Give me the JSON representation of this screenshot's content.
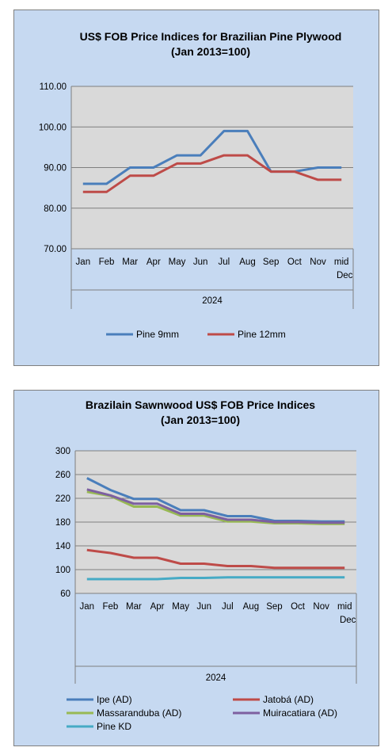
{
  "colors": {
    "panel_bg": "#c6d9f1",
    "plot_bg": "#d9d9d9",
    "gridline": "#7f7f7f",
    "pine_9mm": "#4a7ebb",
    "pine_12mm": "#be4b48",
    "ipe": "#4a7ebb",
    "jatoba": "#be4b48",
    "massaranduba": "#98b954",
    "muiracatiara": "#7d60a0",
    "pine_kd": "#46aac5"
  },
  "chart_data": [
    {
      "type": "line",
      "title": "US$ FOB Price Indices for Brazilian Pine Plywood",
      "subtitle": "(Jan 2013=100)",
      "categories": [
        "Jan",
        "Feb",
        "Mar",
        "Apr",
        "May",
        "Jun",
        "Jul",
        "Aug",
        "Sep",
        "Oct",
        "Nov",
        "mid Dec"
      ],
      "year_label": "2024",
      "ylim": [
        70,
        110
      ],
      "yticks": [
        "70.00",
        "80.00",
        "90.00",
        "100.00",
        "110.00"
      ],
      "grid": true,
      "legend_position": "bottom",
      "series": [
        {
          "name": "Pine 9mm",
          "values": [
            86,
            86,
            90,
            90,
            93,
            93,
            99,
            99,
            89,
            89,
            90,
            90
          ]
        },
        {
          "name": "Pine 12mm",
          "values": [
            84,
            84,
            88,
            88,
            91,
            91,
            93,
            93,
            89,
            89,
            87,
            87
          ]
        }
      ]
    },
    {
      "type": "line",
      "title": "Brazilain Sawnwood US$ FOB Price Indices",
      "subtitle": "(Jan 2013=100)",
      "categories": [
        "Jan",
        "Feb",
        "Mar",
        "Apr",
        "May",
        "Jun",
        "Jul",
        "Aug",
        "Sep",
        "Oct",
        "Nov",
        "mid Dec"
      ],
      "year_label": "2024",
      "ylim": [
        60,
        300
      ],
      "yticks": [
        "60",
        "100",
        "140",
        "180",
        "220",
        "260",
        "300"
      ],
      "grid": true,
      "legend_position": "bottom",
      "series": [
        {
          "name": "Ipe (AD)",
          "values": [
            254,
            234,
            219,
            219,
            200,
            200,
            190,
            190,
            182,
            182,
            181,
            181
          ]
        },
        {
          "name": "Jatobá (AD)",
          "values": [
            133,
            128,
            120,
            120,
            110,
            110,
            106,
            106,
            103,
            103,
            103,
            103
          ]
        },
        {
          "name": "Massaranduba (AD)",
          "values": [
            231,
            224,
            206,
            206,
            191,
            191,
            181,
            181,
            178,
            178,
            177,
            177
          ]
        },
        {
          "name": "Muiracatiara (AD)",
          "values": [
            235,
            225,
            211,
            211,
            194,
            194,
            184,
            184,
            180,
            180,
            179,
            179
          ]
        },
        {
          "name": "Pine KD",
          "values": [
            84,
            84,
            84,
            84,
            86,
            86,
            87,
            87,
            87,
            87,
            87,
            87
          ]
        }
      ]
    }
  ]
}
